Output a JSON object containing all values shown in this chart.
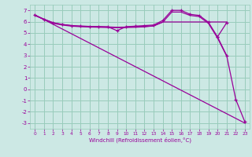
{
  "background_color": "#cce8e4",
  "grid_color": "#99ccbb",
  "line_color": "#990099",
  "xlabel": "Windchill (Refroidissement éolien,°C)",
  "xlim": [
    -0.5,
    23.5
  ],
  "ylim": [
    -3.5,
    7.5
  ],
  "xtick_vals": [
    0,
    1,
    2,
    3,
    4,
    5,
    6,
    7,
    8,
    9,
    10,
    11,
    12,
    13,
    14,
    15,
    16,
    17,
    18,
    19,
    20,
    21,
    22,
    23
  ],
  "ytick_vals": [
    -3,
    -2,
    -1,
    0,
    1,
    2,
    3,
    4,
    5,
    6,
    7
  ],
  "line1_x": [
    0,
    1,
    2,
    3,
    4,
    5,
    6,
    7,
    8,
    9,
    10,
    11,
    12,
    13,
    14,
    15,
    16,
    17,
    18,
    19,
    20,
    21
  ],
  "line1_y": [
    6.6,
    6.2,
    5.9,
    5.75,
    5.65,
    5.6,
    5.58,
    5.56,
    5.54,
    5.2,
    5.55,
    5.6,
    5.65,
    5.7,
    6.1,
    7.0,
    7.0,
    6.65,
    6.55,
    5.95,
    4.65,
    5.9
  ],
  "line2_x": [
    0,
    23
  ],
  "line2_y": [
    6.6,
    -3.0
  ],
  "line3_x": [
    0,
    2,
    3,
    4,
    5,
    6,
    7,
    8,
    9,
    10,
    11,
    12,
    13,
    14,
    15,
    16,
    17,
    18,
    19,
    20,
    21
  ],
  "line3_y": [
    6.55,
    5.9,
    5.75,
    5.65,
    5.6,
    5.57,
    5.55,
    5.53,
    5.5,
    5.52,
    5.55,
    5.57,
    5.62,
    5.97,
    5.97,
    5.97,
    5.97,
    5.97,
    5.97,
    5.97,
    5.97
  ],
  "line4_x": [
    0,
    2,
    3,
    4,
    5,
    6,
    7,
    8,
    9,
    10,
    11,
    12,
    13,
    14,
    15,
    16,
    17,
    18,
    19,
    20,
    21
  ],
  "line4_y": [
    6.55,
    5.85,
    5.7,
    5.6,
    5.55,
    5.52,
    5.5,
    5.48,
    5.46,
    5.48,
    5.5,
    5.54,
    5.62,
    5.95,
    6.85,
    6.85,
    6.55,
    6.45,
    5.85,
    4.55,
    2.95
  ],
  "line5_x": [
    20,
    21,
    22,
    23
  ],
  "line5_y": [
    4.65,
    3.0,
    -0.9,
    -2.9
  ]
}
